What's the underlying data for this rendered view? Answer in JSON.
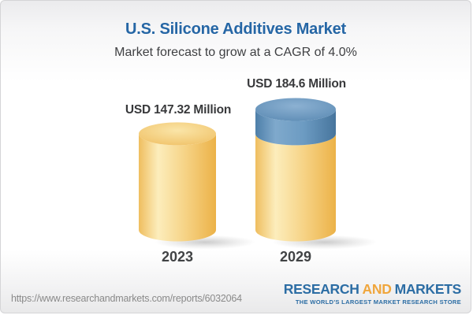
{
  "header": {
    "title": "U.S. Silicone Additives Market",
    "subtitle": "Market forecast to grow at a CAGR of 4.0%"
  },
  "chart_data": {
    "type": "bar",
    "subtype": "3d-cylinder",
    "title": "U.S. Silicone Additives Market",
    "subtitle": "Market forecast to grow at a CAGR of 4.0%",
    "unit": "USD Million",
    "cagr_pct": 4.0,
    "categories": [
      "2023",
      "2029"
    ],
    "totals": [
      147.32,
      184.6
    ],
    "value_labels": [
      "USD 147.32 Million",
      "USD 184.6 Million"
    ],
    "series": [
      {
        "name": "base-market-value",
        "color": "#F3CB72",
        "values": [
          147.32,
          147.32
        ]
      },
      {
        "name": "forecast-growth",
        "color": "#6C9BC2",
        "values": [
          0,
          37.28
        ]
      }
    ],
    "legend": "none",
    "gridlines": false,
    "axis_labels": "none"
  },
  "colors": {
    "title_blue": "#2566A5",
    "text_dark": "#38393B",
    "cylinder_yellow": "#F3CB72",
    "cylinder_yellow_edge": "#ECB248",
    "cylinder_blue": "#6C9BC2",
    "cylinder_blue_edge": "#47759D",
    "url_gray": "#8A8A8A",
    "logo_blue": "#2C6DA4",
    "logo_orange": "#F0A63C"
  },
  "footer": {
    "url": "https://www.researchandmarkets.com/reports/6032064",
    "logo": {
      "word1": "RESEARCH",
      "word2": "AND",
      "word3": "MARKETS",
      "tagline": "THE WORLD'S LARGEST MARKET RESEARCH STORE"
    }
  }
}
